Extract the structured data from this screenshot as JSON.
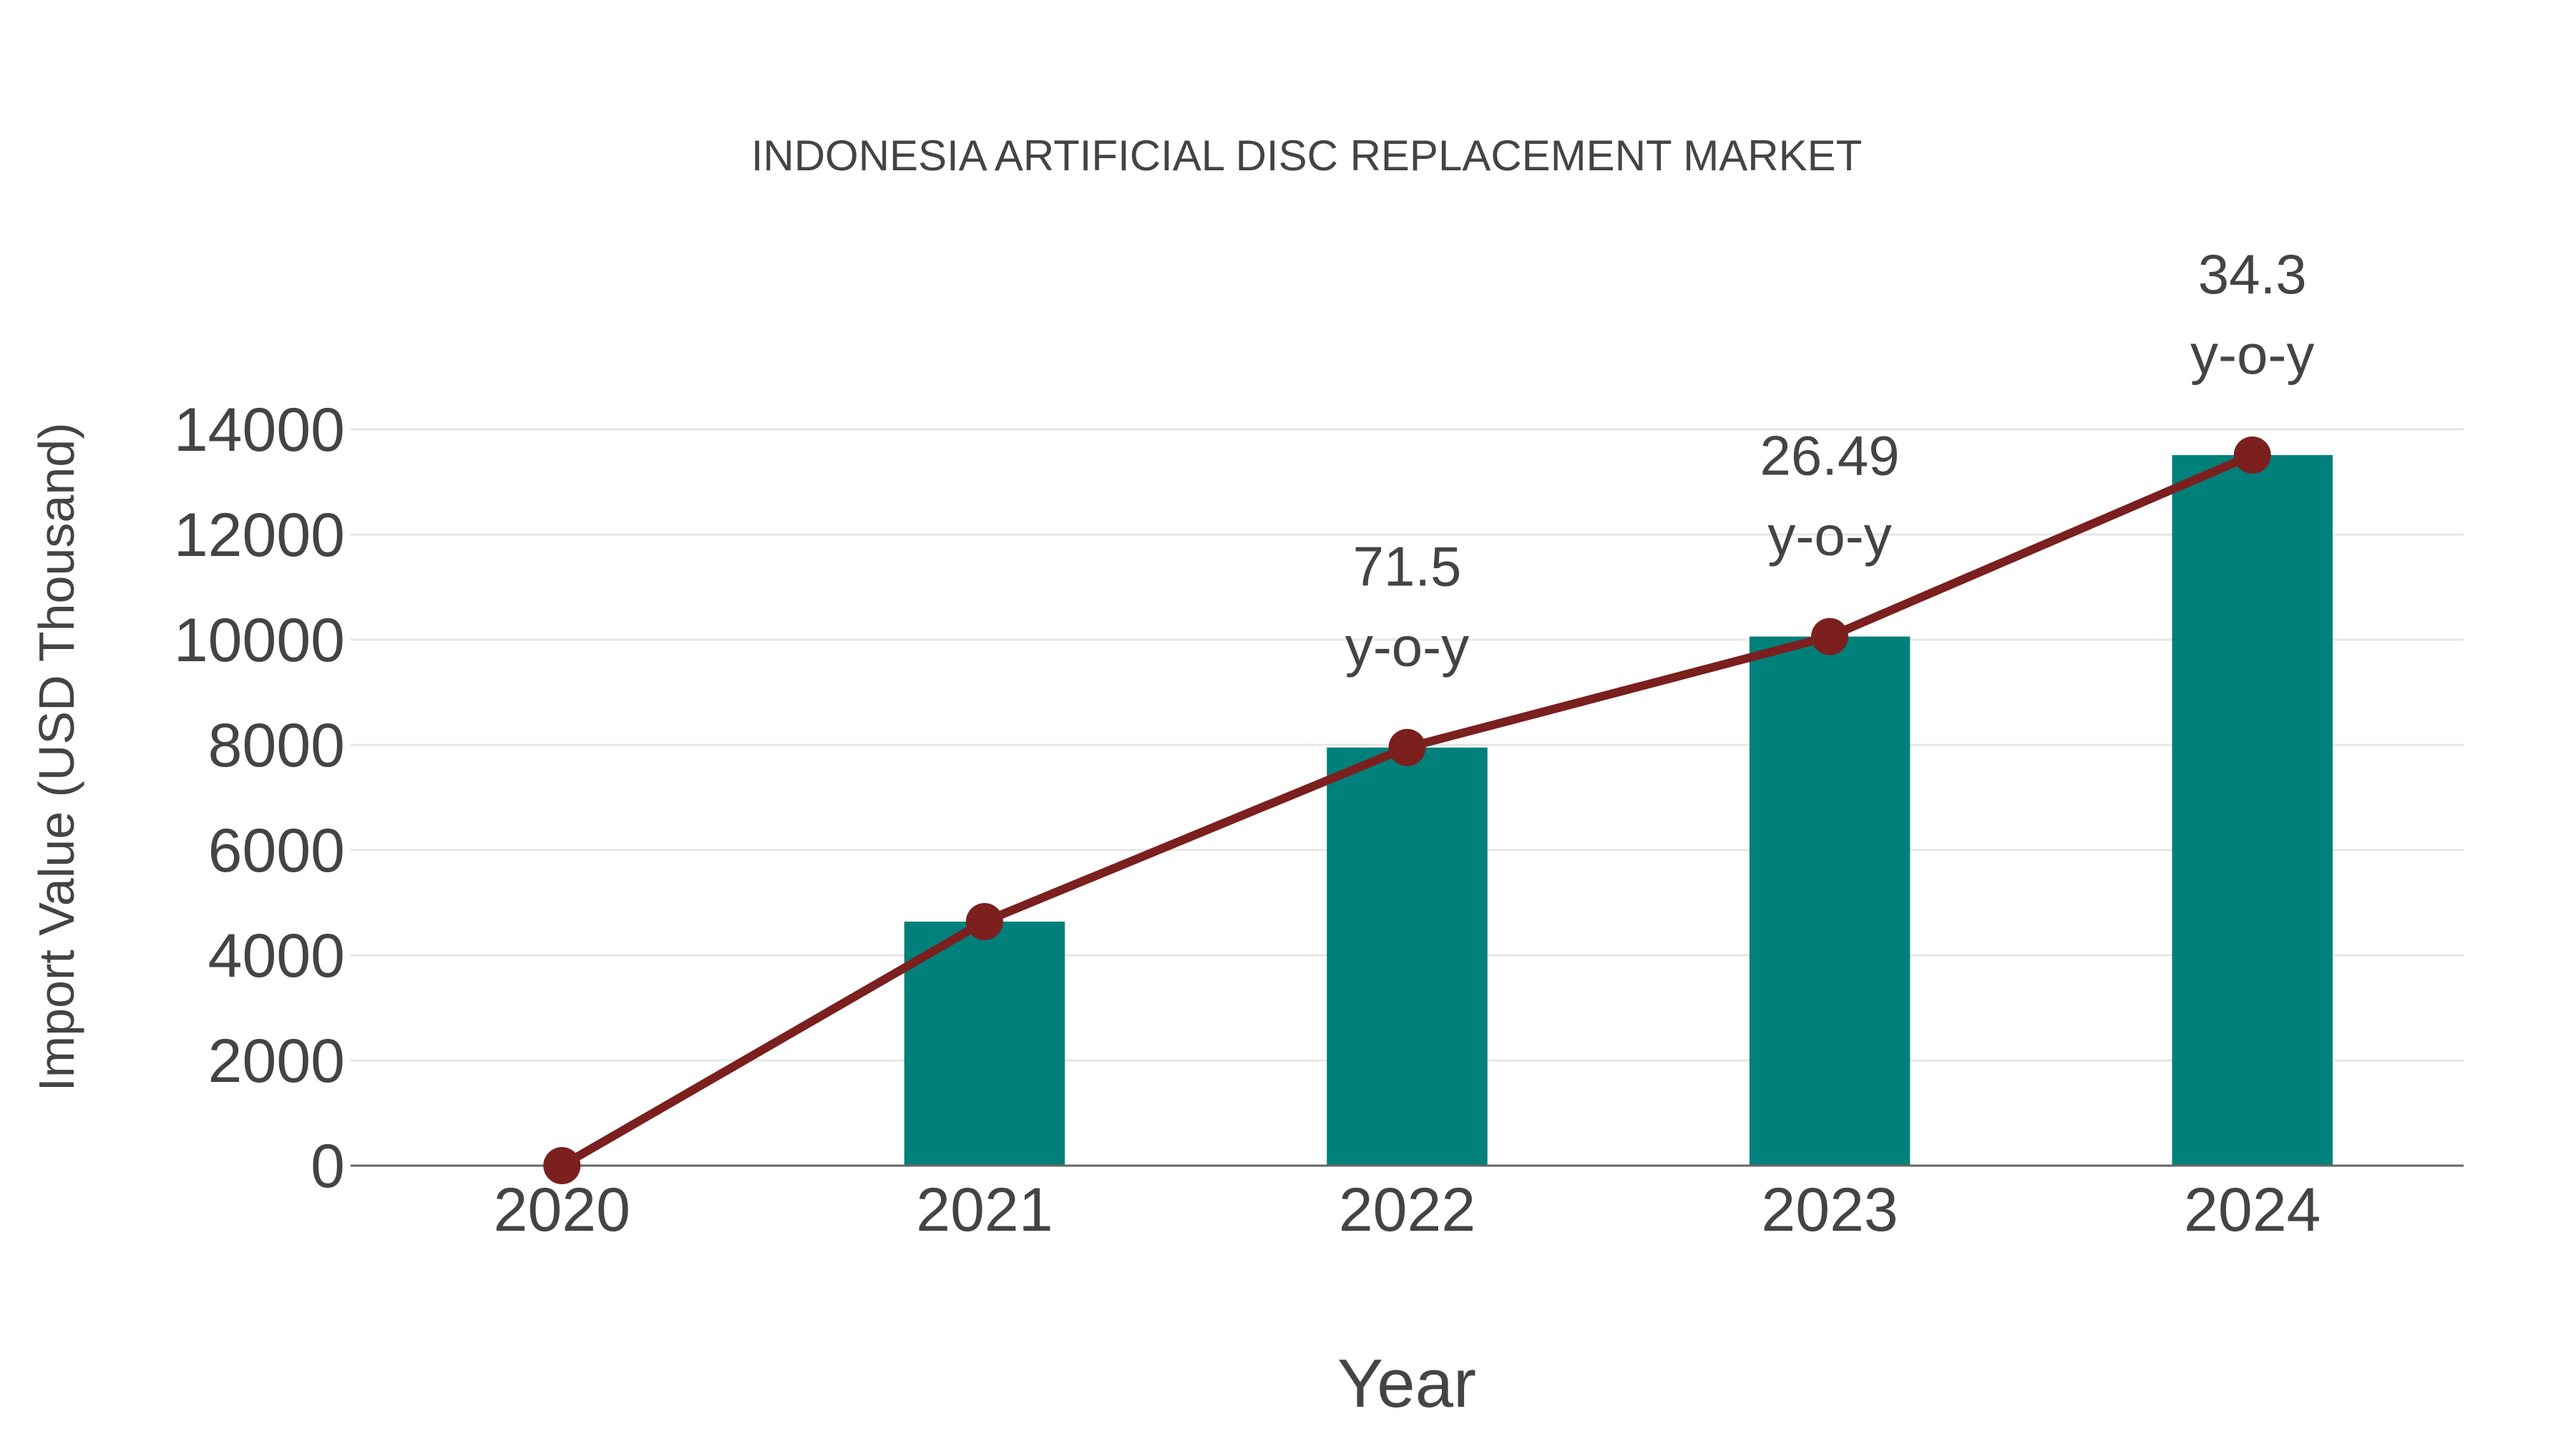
{
  "chart_data": {
    "type": "bar+line",
    "title": "INDONESIA ARTIFICIAL DISC REPLACEMENT MARKET",
    "xlabel": "Year",
    "ylabel": "Import Value (USD Thousand)",
    "categories": [
      "2020",
      "2021",
      "2022",
      "2023",
      "2024"
    ],
    "series": [
      {
        "name": "Import Value",
        "kind": "bar",
        "color": "#00807b",
        "values": [
          0,
          4640,
          7950,
          10060,
          13510
        ]
      },
      {
        "name": "Trend",
        "kind": "line+markers",
        "color": "#7b1f1f",
        "values": [
          0,
          4640,
          7950,
          10060,
          13510
        ]
      }
    ],
    "annotations": [
      {
        "category": "2022",
        "value": "71.5",
        "suffix": "y-o-y"
      },
      {
        "category": "2023",
        "value": "26.49",
        "suffix": "y-o-y"
      },
      {
        "category": "2024",
        "value": "34.3",
        "suffix": "y-o-y"
      }
    ],
    "yticks": [
      0,
      2000,
      4000,
      6000,
      8000,
      10000,
      12000,
      14000
    ],
    "ylim": [
      0,
      14000
    ],
    "grid": true,
    "legend": "none"
  },
  "colors": {
    "bar": "#00807b",
    "line": "#7b1f1f",
    "text": "#444444",
    "grid": "#e6e6e6",
    "axis": "#666666"
  }
}
